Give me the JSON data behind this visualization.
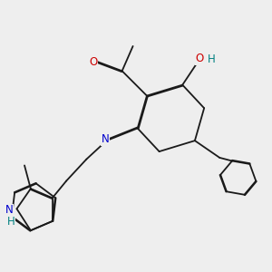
{
  "bg_color": "#eeeeee",
  "bond_color": "#1a1a1a",
  "bond_width": 1.3,
  "atom_colors": {
    "O": "#cc0000",
    "N": "#0000cc",
    "H": "#008080",
    "C": "#1a1a1a"
  },
  "font_size": 8.5,
  "font_size_small": 7.5
}
